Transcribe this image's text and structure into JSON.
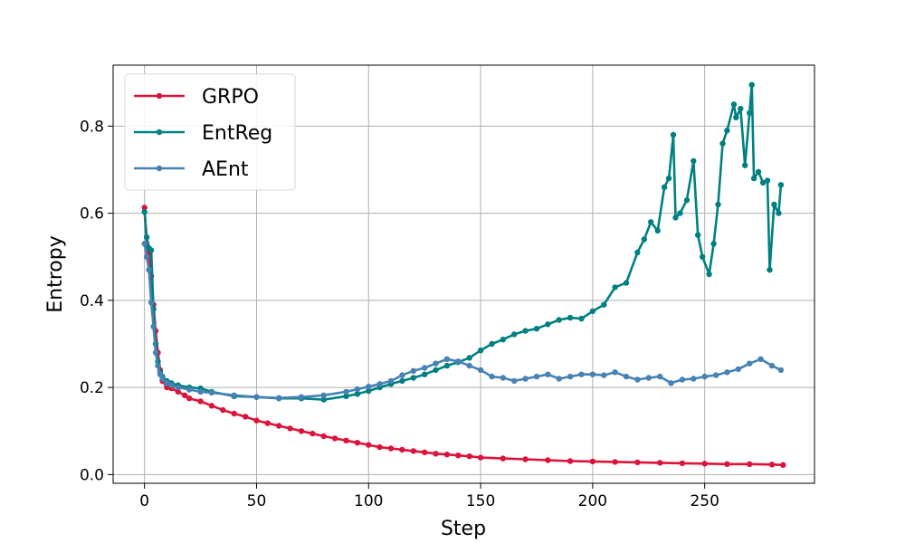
{
  "chart_data": {
    "type": "line",
    "title": "",
    "xlabel": "Step",
    "ylabel": "Entropy",
    "xlim": [
      -14,
      299
    ],
    "ylim": [
      -0.02,
      0.94
    ],
    "xticks": [
      0,
      50,
      100,
      150,
      200,
      250
    ],
    "xtick_labels": [
      "0",
      "50",
      "100",
      "150",
      "200",
      "250"
    ],
    "yticks": [
      0.0,
      0.2,
      0.4,
      0.6,
      0.8
    ],
    "ytick_labels": [
      "0.0",
      "0.2",
      "0.4",
      "0.6",
      "0.8"
    ],
    "grid": true,
    "legend_position": "top-left",
    "series": [
      {
        "name": "GRPO",
        "color": "#dc143c",
        "x": [
          0,
          1,
          2,
          3,
          4,
          5,
          6,
          7,
          8,
          10,
          12,
          15,
          18,
          20,
          25,
          30,
          35,
          40,
          45,
          50,
          55,
          60,
          65,
          70,
          75,
          80,
          85,
          90,
          95,
          100,
          105,
          110,
          115,
          120,
          125,
          130,
          135,
          140,
          145,
          150,
          160,
          170,
          180,
          190,
          200,
          210,
          220,
          230,
          240,
          250,
          260,
          270,
          280,
          285
        ],
        "y": [
          0.613,
          0.53,
          0.51,
          0.455,
          0.39,
          0.33,
          0.28,
          0.24,
          0.215,
          0.2,
          0.198,
          0.19,
          0.182,
          0.175,
          0.168,
          0.158,
          0.148,
          0.14,
          0.133,
          0.124,
          0.118,
          0.112,
          0.106,
          0.1,
          0.094,
          0.088,
          0.083,
          0.078,
          0.073,
          0.068,
          0.063,
          0.06,
          0.057,
          0.054,
          0.051,
          0.048,
          0.046,
          0.044,
          0.042,
          0.039,
          0.037,
          0.035,
          0.033,
          0.031,
          0.03,
          0.029,
          0.028,
          0.027,
          0.026,
          0.025,
          0.024,
          0.024,
          0.023,
          0.022
        ]
      },
      {
        "name": "EntReg",
        "color": "#008080",
        "x": [
          0,
          1,
          2,
          3,
          4,
          5,
          6,
          7,
          8,
          10,
          12,
          15,
          20,
          25,
          30,
          40,
          50,
          60,
          70,
          80,
          90,
          95,
          100,
          105,
          110,
          115,
          120,
          125,
          130,
          135,
          140,
          145,
          150,
          155,
          160,
          165,
          170,
          175,
          180,
          185,
          190,
          195,
          200,
          205,
          210,
          215,
          220,
          223,
          226,
          229,
          232,
          234,
          236,
          237,
          239,
          242,
          245,
          247,
          249,
          252,
          254,
          256,
          258,
          260,
          263,
          264,
          266,
          268,
          270,
          271,
          272,
          274,
          276,
          278,
          279,
          281,
          283,
          284
        ],
        "y": [
          0.603,
          0.545,
          0.52,
          0.515,
          0.38,
          0.3,
          0.26,
          0.235,
          0.225,
          0.215,
          0.21,
          0.205,
          0.2,
          0.198,
          0.19,
          0.18,
          0.178,
          0.175,
          0.175,
          0.172,
          0.18,
          0.185,
          0.192,
          0.2,
          0.208,
          0.215,
          0.222,
          0.23,
          0.24,
          0.25,
          0.258,
          0.268,
          0.285,
          0.3,
          0.31,
          0.322,
          0.33,
          0.335,
          0.345,
          0.355,
          0.36,
          0.358,
          0.375,
          0.39,
          0.43,
          0.44,
          0.51,
          0.54,
          0.58,
          0.56,
          0.66,
          0.68,
          0.78,
          0.59,
          0.6,
          0.63,
          0.72,
          0.55,
          0.5,
          0.46,
          0.53,
          0.62,
          0.76,
          0.79,
          0.85,
          0.82,
          0.84,
          0.71,
          0.83,
          0.895,
          0.68,
          0.695,
          0.67,
          0.675,
          0.47,
          0.62,
          0.6,
          0.665
        ]
      },
      {
        "name": "AEnt",
        "color": "#4682b4",
        "x": [
          0,
          1,
          2,
          3,
          4,
          5,
          6,
          7,
          8,
          10,
          12,
          15,
          20,
          25,
          30,
          40,
          50,
          60,
          70,
          80,
          90,
          95,
          100,
          105,
          110,
          115,
          120,
          125,
          130,
          135,
          140,
          145,
          150,
          155,
          160,
          165,
          170,
          175,
          180,
          185,
          190,
          195,
          200,
          205,
          210,
          215,
          220,
          225,
          230,
          235,
          240,
          245,
          250,
          255,
          260,
          265,
          270,
          275,
          280,
          284
        ],
        "y": [
          0.53,
          0.5,
          0.47,
          0.395,
          0.34,
          0.28,
          0.25,
          0.23,
          0.22,
          0.21,
          0.205,
          0.2,
          0.195,
          0.19,
          0.188,
          0.182,
          0.178,
          0.176,
          0.178,
          0.182,
          0.19,
          0.196,
          0.202,
          0.208,
          0.215,
          0.228,
          0.238,
          0.245,
          0.255,
          0.265,
          0.26,
          0.25,
          0.24,
          0.225,
          0.222,
          0.215,
          0.22,
          0.225,
          0.23,
          0.22,
          0.225,
          0.23,
          0.23,
          0.228,
          0.235,
          0.225,
          0.218,
          0.222,
          0.225,
          0.21,
          0.218,
          0.22,
          0.225,
          0.228,
          0.235,
          0.242,
          0.255,
          0.265,
          0.25,
          0.24
        ]
      }
    ]
  }
}
